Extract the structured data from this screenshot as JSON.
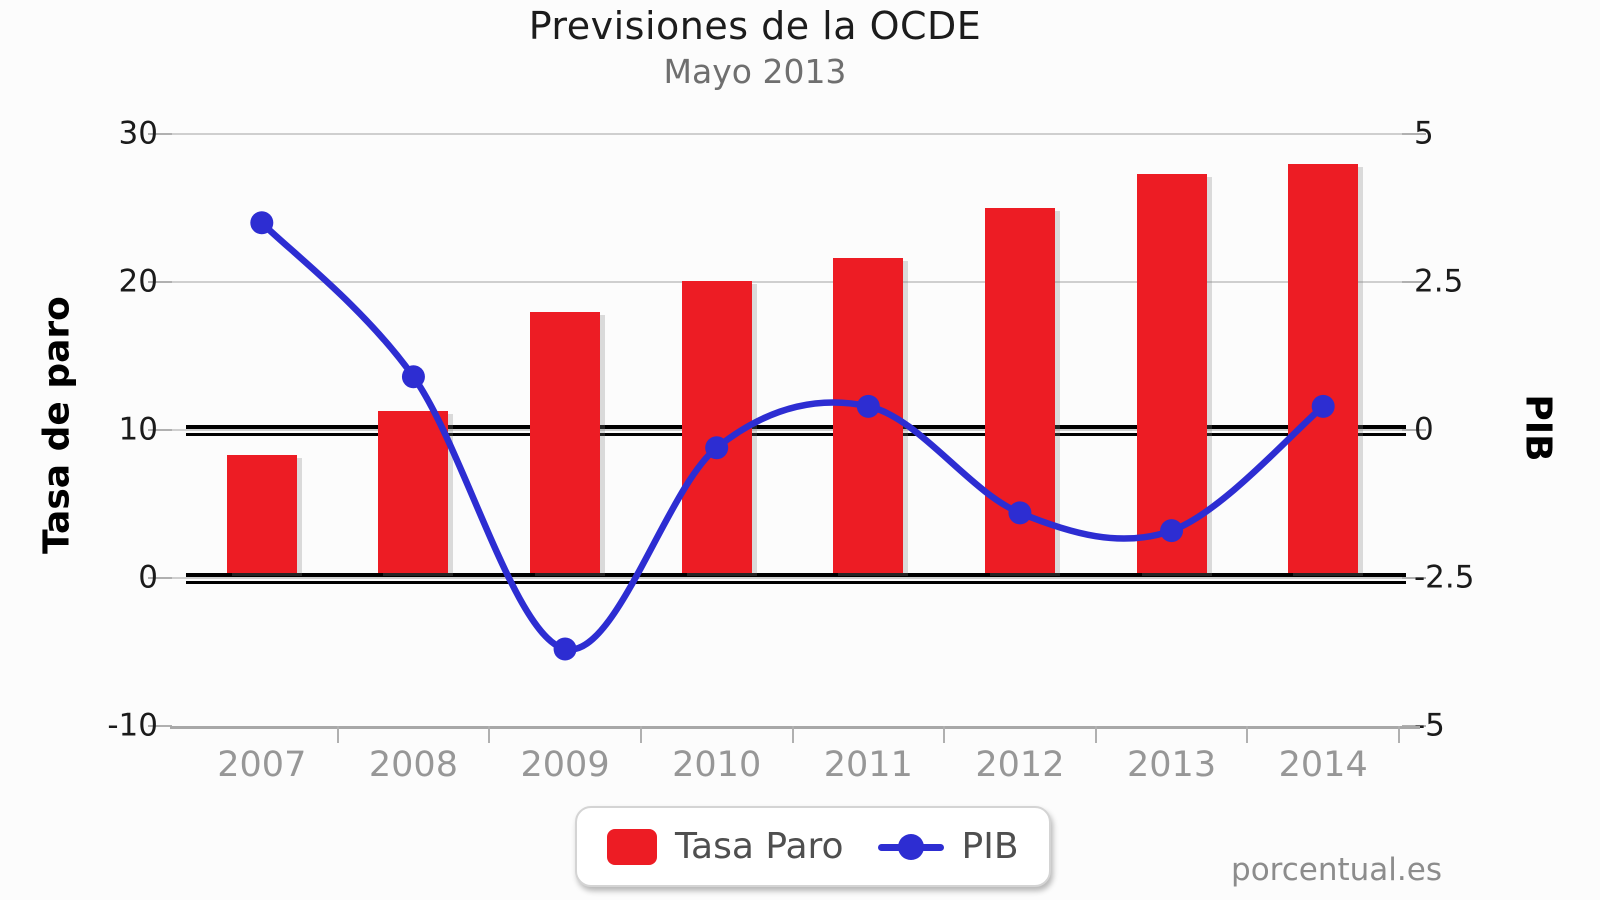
{
  "chart": {
    "title": "Previsiones de la OCDE",
    "subtitle": "Mayo 2013",
    "watermark": "porcentual.es"
  },
  "chart_data": {
    "type": "bar",
    "subtype": "dual-axis bar+line combo",
    "title": "Previsiones de la OCDE",
    "subtitle": "Mayo 2013",
    "categories": [
      "2007",
      "2008",
      "2009",
      "2010",
      "2011",
      "2012",
      "2013",
      "2014"
    ],
    "series": [
      {
        "name": "Tasa Paro",
        "type": "bar",
        "axis": "left",
        "color": "#ed1c24",
        "values": [
          8.3,
          11.3,
          18.0,
          20.1,
          21.6,
          25.0,
          27.3,
          28.0
        ]
      },
      {
        "name": "PIB",
        "type": "line",
        "axis": "right",
        "color": "#2d2dd2",
        "values": [
          3.5,
          0.9,
          -3.7,
          -0.3,
          0.4,
          -1.4,
          -1.7,
          0.4
        ]
      }
    ],
    "left_axis": {
      "label": "Tasa de paro",
      "min": -10,
      "max": 30,
      "ticks": [
        30,
        20,
        10,
        0,
        -10
      ]
    },
    "right_axis": {
      "label": "PIB",
      "min": -5,
      "max": 5,
      "ticks": [
        5,
        2.5,
        0,
        -2.5,
        -5
      ]
    },
    "emphasis_lines": {
      "style": "double black horizontal line",
      "left_axis_values": [
        10,
        0
      ]
    },
    "grid": true,
    "legend": {
      "position": "bottom-center",
      "entries": [
        "Tasa Paro",
        "PIB"
      ]
    },
    "colors": {
      "bar": "#ed1c24",
      "line": "#2d2dd2",
      "gridline": "#cfcfcf",
      "axis": "#a8a8a8",
      "x_tick_label": "#979797",
      "y_tick_label": "#1b1b1b",
      "title": "#1c1c1c",
      "subtitle": "#6f6f6f"
    }
  }
}
